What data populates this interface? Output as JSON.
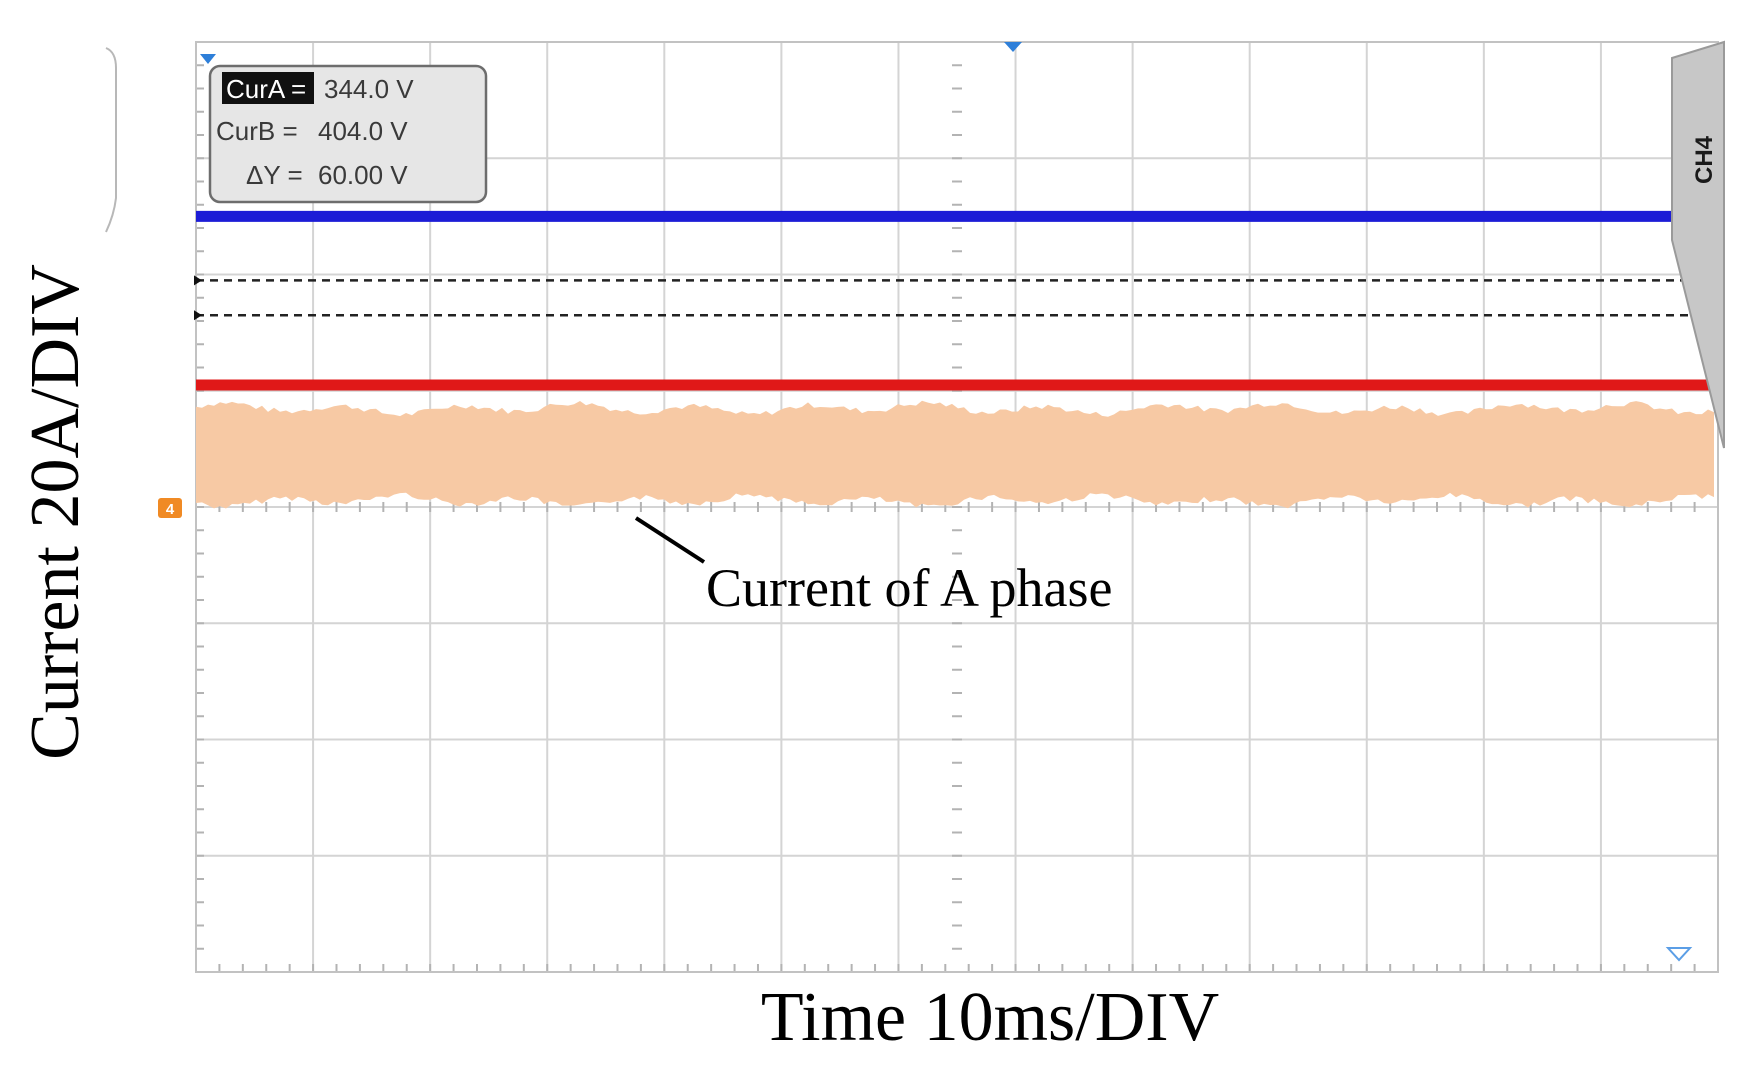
{
  "chart_data": {
    "type": "line",
    "xlabel": "Time 10ms/DIV",
    "ylabel": "Current 20A/DIV",
    "grid": true,
    "x_divisions": 13,
    "y_divisions": 8,
    "channel_tab": "CH4",
    "channel_marker": "4",
    "cursor_readout": {
      "curA_label": "CurA =",
      "curA_value": "344.0 V",
      "curB_label": "CurB =",
      "curB_value": "404.0 V",
      "dY_label": "ΔY =",
      "dY_value": "60.00 V"
    },
    "series": [
      {
        "name": "",
        "color": "#1c1cd6",
        "level_div": 6.5,
        "kind": "flat"
      },
      {
        "name": "",
        "color": "#e01818",
        "level_div": 5.05,
        "kind": "flat"
      },
      {
        "name": "Current of A phase",
        "color": "#f7c9a4",
        "center_div": 4.45,
        "band_div": 0.95,
        "kind": "noisy"
      }
    ],
    "cursors": [
      {
        "label": "CurA",
        "level_div": 5.95,
        "style": "dashed"
      },
      {
        "label": "CurB",
        "level_div": 5.65,
        "style": "dashed"
      }
    ],
    "annotation": "Current of A phase"
  },
  "colors": {
    "grid": "#d4d4d4",
    "blue_trace": "#1c1cd6",
    "red_trace": "#e01818",
    "orange_trace": "#f7c9a4",
    "marker": "#f08a24"
  }
}
